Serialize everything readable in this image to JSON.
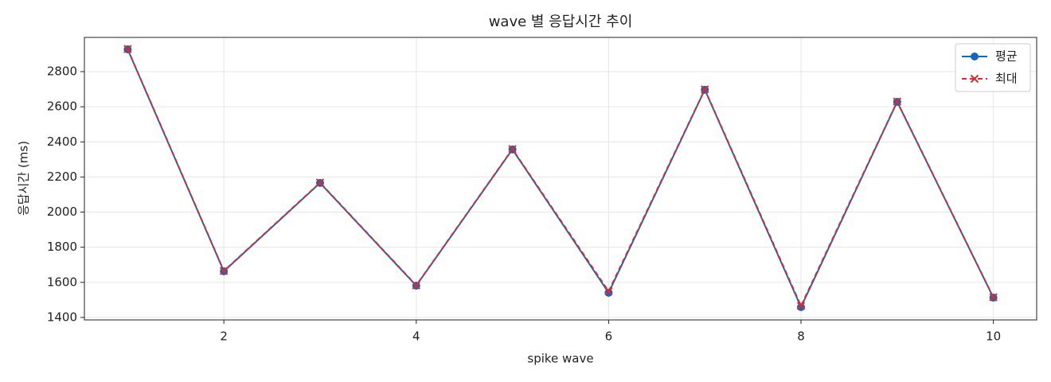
{
  "chart_data": {
    "type": "line",
    "title": "wave 별 응답시간 추이",
    "xlabel": "spike wave",
    "ylabel": "응답시간 (ms)",
    "x": [
      1,
      2,
      3,
      4,
      5,
      6,
      7,
      8,
      9,
      10
    ],
    "series": [
      {
        "name": "평균",
        "color": "#1565c0",
        "marker": "o",
        "linestyle": "solid",
        "values": [
          2927,
          1663,
          2166,
          1581,
          2357,
          1541,
          2697,
          1459,
          2628,
          1513
        ]
      },
      {
        "name": "최대",
        "color": "#d32f2f",
        "marker": "x",
        "linestyle": "dashed",
        "values": [
          2929,
          1665,
          2168,
          1583,
          2359,
          1549,
          2699,
          1466,
          2630,
          1515
        ]
      }
    ],
    "xlim": [
      0.55,
      10.45
    ],
    "xticks": [
      2,
      4,
      6,
      8,
      10
    ],
    "ylim": [
      1386,
      2995
    ],
    "yticks": [
      1400,
      1600,
      1800,
      2000,
      2200,
      2400,
      2600,
      2800
    ],
    "grid": true,
    "legend": "upper right"
  }
}
